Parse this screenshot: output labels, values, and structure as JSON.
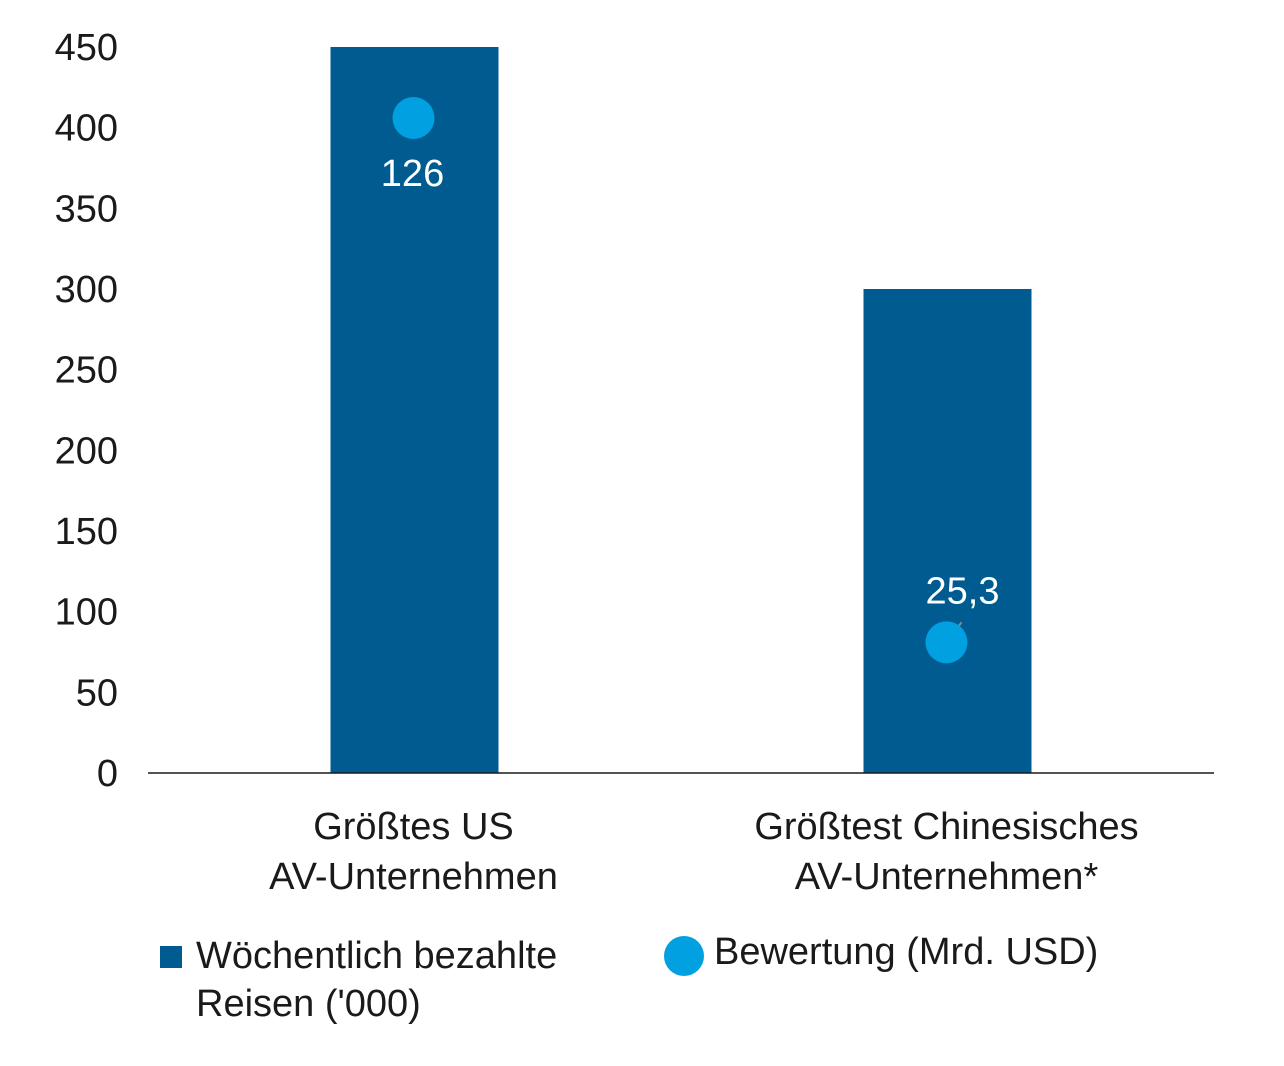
{
  "colors": {
    "bar": "#005b91",
    "dot": "#00a0e1",
    "axis": "#1a1a1a",
    "connector": "#8a8a8a"
  },
  "chart_data": {
    "type": "bar",
    "categories": [
      [
        "Größtes US",
        "AV-Unternehmen"
      ],
      [
        "Größtest Chinesisches",
        "AV-Unternehmen*"
      ]
    ],
    "ylim": [
      0,
      450
    ],
    "yticks": [
      0,
      50,
      100,
      150,
      200,
      250,
      300,
      350,
      400,
      450
    ],
    "series": [
      {
        "name": "Wöchentlich bezahlte Reisen ('000)",
        "kind": "bar",
        "values": [
          450,
          300
        ]
      },
      {
        "name": "Bewertung (Mrd. USD)",
        "kind": "dot",
        "values": [
          126,
          25.3
        ],
        "labels": [
          "126",
          "25,3"
        ]
      }
    ],
    "dot_positions_on_axis": [
      406,
      81
    ],
    "legend_placement": "bottom"
  },
  "legend": {
    "bar_label": "Wöchentlich bezahlte Reisen ('000)",
    "dot_label": "Bewertung (Mrd. USD)"
  }
}
